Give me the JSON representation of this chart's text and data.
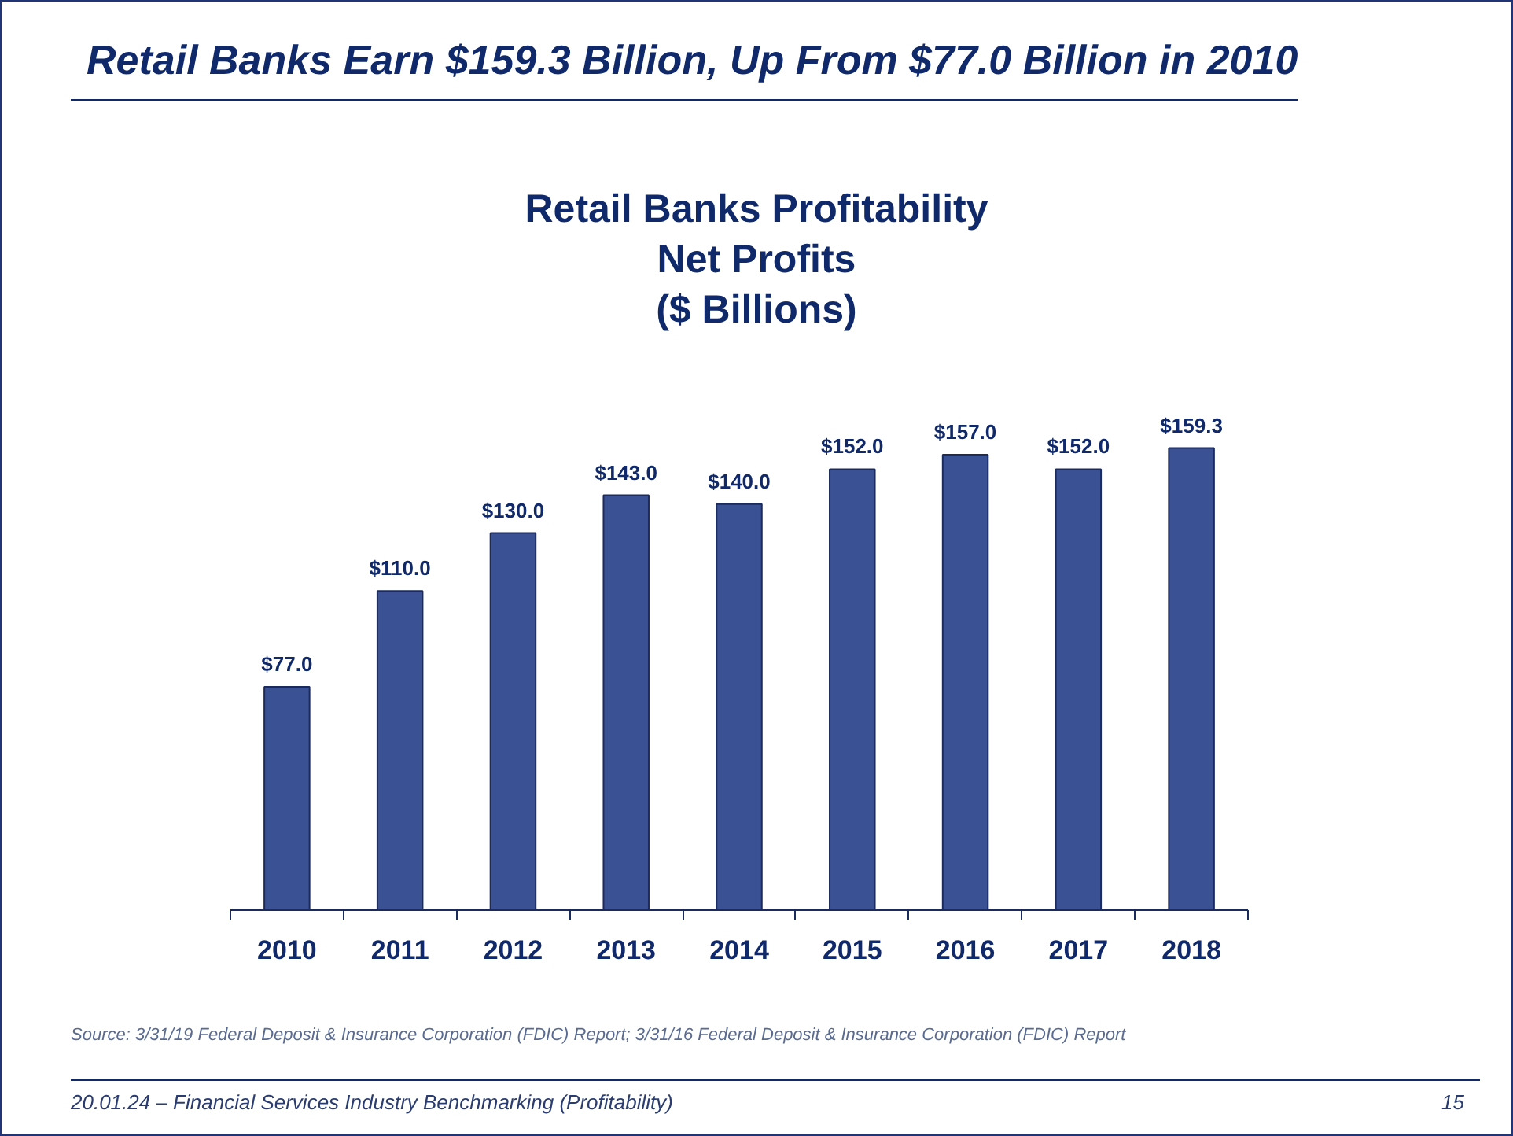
{
  "chart_data": {
    "type": "bar",
    "title": "Retail Banks Earn $159.3 Billion, Up From $77.0 Billion in 2010",
    "subtitle": "Retail Banks Profitability\nNet Profits\n($ Billions)",
    "categories": [
      "2010",
      "2011",
      "2012",
      "2013",
      "2014",
      "2015",
      "2016",
      "2017",
      "2018"
    ],
    "values": [
      77.0,
      110.0,
      130.0,
      143.0,
      140.0,
      152.0,
      157.0,
      152.0,
      159.3
    ],
    "value_labels": [
      "$77.0",
      "$110.0",
      "$130.0",
      "$143.0",
      "$140.0",
      "$152.0",
      "$157.0",
      "$152.0",
      "$159.3"
    ],
    "color": "#3a5193",
    "grid": false,
    "tick_labels": "x",
    "annotations": [
      "Source: 3/31/19 Federal Deposit & Insurance Corporation (FDIC) Report; 3/31/16 Federal Deposit & Insurance Corporation (FDIC) Report",
      "20.01.24 – Financial Services Industry Benchmarking (Profitability)",
      "15"
    ]
  }
}
